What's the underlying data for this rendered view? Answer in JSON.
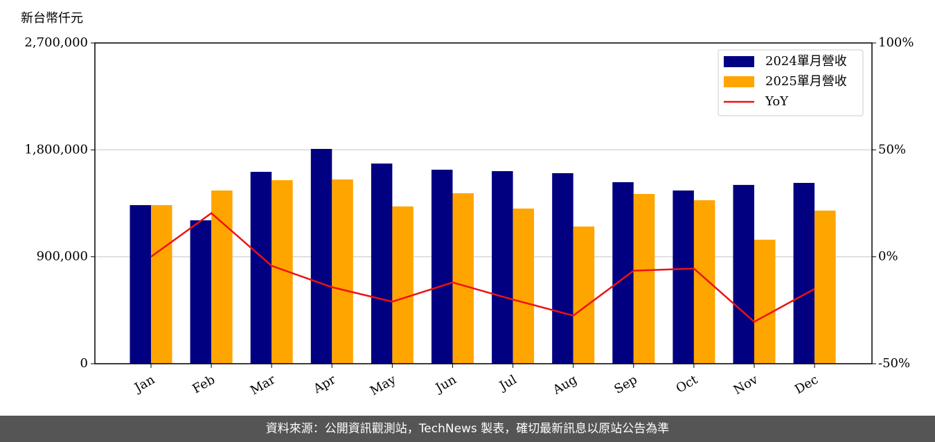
{
  "chart_data": {
    "type": "bar_line",
    "ylabel": "新台幣仟元",
    "categories": [
      "Jan",
      "Feb",
      "Mar",
      "Apr",
      "May",
      "Jun",
      "Jul",
      "Aug",
      "Sep",
      "Oct",
      "Nov",
      "Dec"
    ],
    "series": [
      {
        "name": "2024單月營收",
        "color": "#000080",
        "values": [
          1335000,
          1207000,
          1615000,
          1808000,
          1685000,
          1633000,
          1621000,
          1604000,
          1528000,
          1458000,
          1505000,
          1522000
        ]
      },
      {
        "name": "2025單月營收",
        "color": "#ffa500",
        "values": [
          1335000,
          1458000,
          1545000,
          1551000,
          1324000,
          1435000,
          1306000,
          1155000,
          1429000,
          1376000,
          1044000,
          1289000
        ]
      },
      {
        "name": "YoY",
        "color": "#ee1111",
        "axis": "y2",
        "values": [
          0,
          20.4,
          -4.2,
          -14.2,
          -21,
          -12,
          -20,
          -27.5,
          -6.5,
          -5.5,
          -30.4,
          -15
        ]
      }
    ],
    "ylim": [
      0,
      2700000
    ],
    "yticks": [
      0,
      {
        "value": 900000,
        "label": "900,000"
      },
      {
        "value": 1800000,
        "label": "1,800,000"
      },
      {
        "value": 2700000,
        "label": "2,700,000"
      }
    ],
    "y2lim": [
      -50,
      100
    ],
    "y2ticks": [
      {
        "value": -50,
        "label": "-50%"
      },
      {
        "value": 0,
        "label": "0%"
      },
      {
        "value": 50,
        "label": "50%"
      },
      {
        "value": 100,
        "label": "100%"
      }
    ],
    "grid": true,
    "legend": "upper right"
  },
  "footer": "資料來源：公開資訊觀測站，TechNews 製表，確切最新訊息以原站公告為準"
}
